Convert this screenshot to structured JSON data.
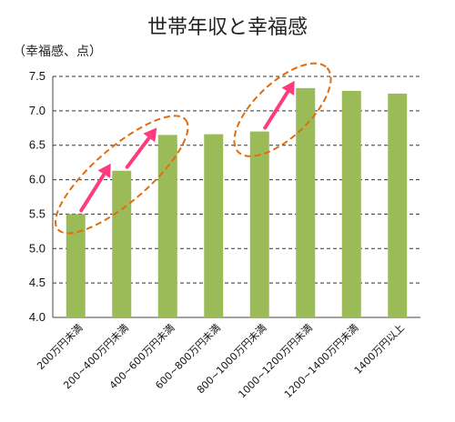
{
  "chart_data": {
    "type": "bar",
    "title": "世帯年収と幸福感",
    "ylabel": "（幸福感、点）",
    "xlabel": "",
    "categories": [
      "200万円未満",
      "200~400万円未満",
      "400~600万円未満",
      "600~800万円未満",
      "800~1000万円未満",
      "1000~1200万円未満",
      "1200~1400万円未満",
      "1400万円以上"
    ],
    "values": [
      5.5,
      6.13,
      6.65,
      6.66,
      6.7,
      7.33,
      7.29,
      7.25
    ],
    "ylim": [
      4.0,
      7.5
    ],
    "yticks": [
      "4.0",
      "4.5",
      "5.0",
      "5.5",
      "6.0",
      "6.5",
      "7.0",
      "7.5"
    ],
    "grid": true,
    "colors": {
      "bar": "#9bbb59",
      "ellipse": "#e46c0a",
      "arrow": "#ff3b7f",
      "grid": "#333333"
    },
    "annotations": [
      {
        "type": "ellipse-with-arrows",
        "categories": [
          0,
          2
        ]
      },
      {
        "type": "ellipse-with-arrows",
        "categories": [
          4,
          5
        ]
      }
    ]
  }
}
